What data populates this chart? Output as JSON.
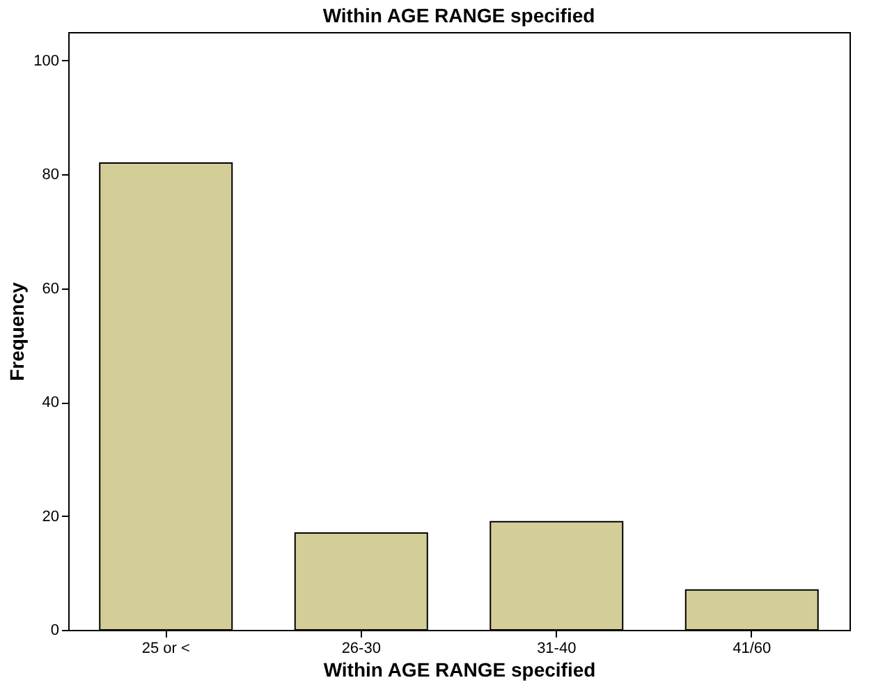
{
  "chart_data": {
    "type": "bar",
    "title": "Within AGE RANGE specified",
    "xlabel": "Within AGE RANGE specified",
    "ylabel": "Frequency",
    "categories": [
      "25 or <",
      "26-30",
      "31-40",
      "41/60"
    ],
    "values": [
      82,
      17,
      19,
      7
    ],
    "color": "#d3ce97",
    "ylim": [
      0,
      105
    ],
    "yticks": [
      0,
      20,
      40,
      60,
      80,
      100
    ],
    "grid": false
  }
}
